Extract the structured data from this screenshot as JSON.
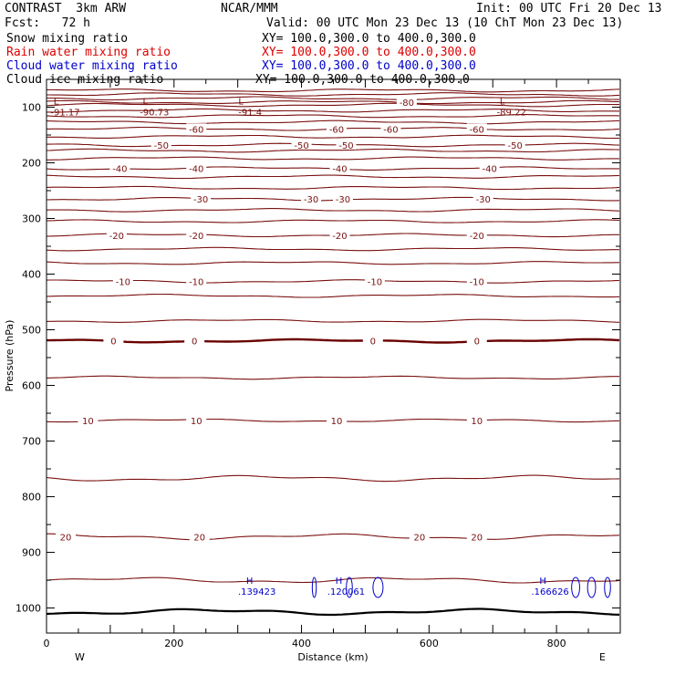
{
  "header": {
    "model": "CONTRAST  3km ARW",
    "center": "NCAR/MMM",
    "init": "Init: 00 UTC Fri 20 Dec 13",
    "fcst": "Fcst:   72 h",
    "valid": "Valid: 00 UTC Mon 23 Dec 13 (10 ChT Mon 23 Dec 13)"
  },
  "fields": [
    {
      "name": "Snow mixing ratio",
      "xy": "XY= 100.0,300.0 to 400.0,300.0",
      "color": "#000000"
    },
    {
      "name": "Rain water mixing ratio",
      "xy": "XY= 100.0,300.0 to 400.0,300.0",
      "color": "#dd0000"
    },
    {
      "name": "Cloud water mixing ratio",
      "xy": "XY= 100.0,300.0 to 400.0,300.0",
      "color": "#0000cc"
    },
    {
      "name": "Cloud ice mixing ratio",
      "xy": "XY= 100.0,300.0 to 400.0,300.0",
      "color": "#000000"
    }
  ],
  "colors": {
    "temperature_contour": "#7a1010",
    "zero_contour": "#6a0000",
    "cloud_water": "#0000cc",
    "frame": "#000000"
  },
  "chart_data": {
    "type": "line",
    "title": "",
    "xlabel": "Distance (km)",
    "ylabel": "Pressure (hPa)",
    "xlim": [
      0,
      900
    ],
    "ylim": [
      1045,
      50
    ],
    "xticks": [
      0,
      200,
      400,
      600,
      800
    ],
    "yticks": [
      100,
      200,
      300,
      400,
      500,
      600,
      700,
      800,
      900,
      1000
    ],
    "x_end_labels": {
      "left": "W",
      "right": "E"
    },
    "temperature_contours": [
      {
        "p": 1007,
        "label": ""
      },
      {
        "p": 950,
        "label": ""
      },
      {
        "p": 872,
        "label": "20",
        "label_x": [
          30,
          240,
          585,
          675
        ]
      },
      {
        "p": 767,
        "label": ""
      },
      {
        "p": 663,
        "label": "10",
        "label_x": [
          65,
          235,
          455,
          675
        ]
      },
      {
        "p": 586,
        "label": ""
      },
      {
        "p": 520,
        "label": "0",
        "label_x": [
          105,
          232,
          512,
          675
        ]
      },
      {
        "p": 484,
        "label": ""
      },
      {
        "p": 439,
        "label": ""
      },
      {
        "p": 413,
        "label": "-10",
        "label_x": [
          120,
          235,
          515,
          675
        ]
      },
      {
        "p": 380,
        "label": ""
      },
      {
        "p": 355,
        "label": ""
      },
      {
        "p": 330,
        "label": "-20",
        "label_x": [
          110,
          235,
          460,
          675
        ]
      },
      {
        "p": 305,
        "label": ""
      },
      {
        "p": 285,
        "label": ""
      },
      {
        "p": 265,
        "label": "-30",
        "label_x": [
          242,
          415,
          465,
          685
        ]
      },
      {
        "p": 245,
        "label": ""
      },
      {
        "p": 225,
        "label": ""
      },
      {
        "p": 210,
        "label": "-40",
        "label_x": [
          115,
          235,
          460,
          695
        ]
      },
      {
        "p": 192,
        "label": ""
      },
      {
        "p": 178,
        "label": ""
      },
      {
        "p": 168,
        "label": "-50",
        "label_x": [
          180,
          400,
          470,
          735
        ]
      },
      {
        "p": 153,
        "label": ""
      },
      {
        "p": 139,
        "label": "-60",
        "label_x": [
          235,
          455,
          540,
          675
        ]
      },
      {
        "p": 127,
        "label": ""
      },
      {
        "p": 116,
        "label": ""
      },
      {
        "p": 106,
        "label": ""
      },
      {
        "p": 96,
        "label": ""
      },
      {
        "p": 91,
        "label": "-80",
        "label_x": [
          565
        ]
      },
      {
        "p": 84,
        "label": ""
      },
      {
        "p": 77,
        "label": ""
      },
      {
        "p": 70,
        "label": ""
      }
    ],
    "minima": [
      {
        "x": 15,
        "p": 72,
        "marker": "L",
        "value": "-91.17"
      },
      {
        "x": 155,
        "p": 72,
        "marker": "L",
        "value": "-90.73"
      },
      {
        "x": 305,
        "p": 72,
        "marker": "L",
        "value": "-91.4"
      },
      {
        "x": 715,
        "p": 72,
        "marker": "L",
        "value": "-89.22"
      }
    ],
    "cloud_water_maxima": [
      {
        "x": 330,
        "p": 963,
        "marker": "H",
        "value": ".139423"
      },
      {
        "x": 470,
        "p": 963,
        "marker": "H",
        "value": ".120061"
      },
      {
        "x": 790,
        "p": 963,
        "marker": "H",
        "value": ".166626"
      }
    ]
  }
}
